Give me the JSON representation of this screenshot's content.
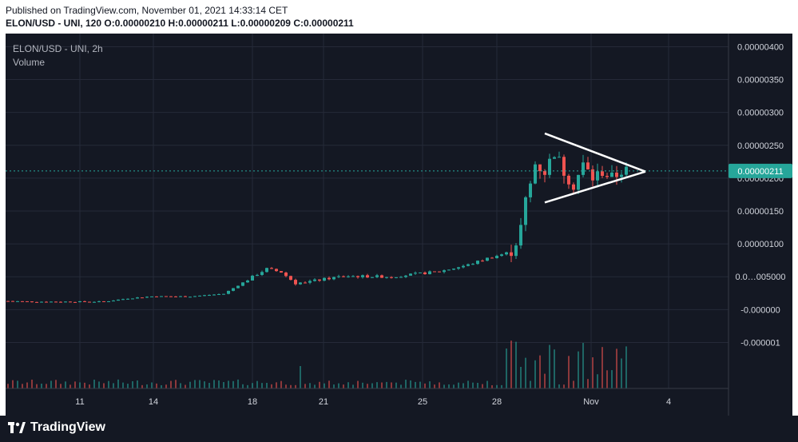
{
  "header": {
    "published": "Published on TradingView.com, November 01, 2021 14:33:14 CET",
    "symbol_interval": "ELON/USD - UNI, 120",
    "o_label": "O:",
    "o_value": "0.00000210",
    "h_label": "H:",
    "h_value": "0.00000211",
    "l_label": "L:",
    "l_value": "0.00000209",
    "c_label": "C:",
    "c_value": "0.00000211"
  },
  "overlay": {
    "title": "ELON/USD - UNI, 2h",
    "volume_label": "Volume"
  },
  "price_axis": {
    "ticks": [
      "0.00000400",
      "0.00000350",
      "0.00000300",
      "0.00000250",
      "0.00000200",
      "0.00000150",
      "0.00000100",
      "0.0…005000",
      "-0.000000",
      "-0.000001"
    ],
    "last_price_label": "0.00000211"
  },
  "time_axis": {
    "ticks": [
      "11",
      "14",
      "18",
      "21",
      "25",
      "28",
      "Nov",
      "4"
    ]
  },
  "branding": {
    "name": "TradingView"
  },
  "colors": {
    "background": "#141823",
    "grid": "#252a38",
    "up": "#26a69a",
    "down": "#ef5350",
    "last_price": "#26a69a",
    "axis_text": "#d1d4dc",
    "pattern": "#ffffff"
  },
  "chart_data": {
    "type": "candlestick",
    "title": "ELON/USD - UNI, 2h",
    "price_ylim": [
      -1.2e-06,
      4.2e-06
    ],
    "last_price": 2.11e-06,
    "x_ticks": [
      "11",
      "14",
      "18",
      "21",
      "25",
      "28",
      "Nov",
      "4"
    ],
    "close_path": [
      [
        0,
        1.3e-07
      ],
      [
        5,
        1.2e-07
      ],
      [
        12,
        1.2e-07
      ],
      [
        20,
        1.2e-07
      ],
      [
        25,
        1.7e-07
      ],
      [
        30,
        2e-07
      ],
      [
        38,
        2e-07
      ],
      [
        45,
        2.4e-07
      ],
      [
        52,
        5.4e-07
      ],
      [
        54,
        6.2e-07
      ],
      [
        57,
        5.7e-07
      ],
      [
        60,
        4e-07
      ],
      [
        64,
        4.4e-07
      ],
      [
        70,
        5.1e-07
      ],
      [
        80,
        5e-07
      ],
      [
        90,
        5.8e-07
      ],
      [
        96,
        6.8e-07
      ],
      [
        100,
        7.8e-07
      ],
      [
        104,
        8.6e-07
      ],
      [
        105,
        9e-07
      ],
      [
        106,
        1.03e-06
      ],
      [
        107,
        1.25e-06
      ],
      [
        108,
        1.65e-06
      ],
      [
        109,
        1.9e-06
      ],
      [
        110,
        2.22e-06
      ],
      [
        112,
        2.1e-06
      ],
      [
        114,
        2.4e-06
      ],
      [
        116,
        2.1e-06
      ],
      [
        118,
        1.9e-06
      ],
      [
        120,
        2.2e-06
      ],
      [
        122,
        2e-06
      ],
      [
        124,
        2.1e-06
      ],
      [
        126,
        2e-06
      ],
      [
        128,
        2.11e-06
      ]
    ],
    "pattern": {
      "type": "symmetrical triangle",
      "start": [
        112,
        2.68e-06,
        1.63e-06
      ],
      "apex": [
        133,
        2.1e-06
      ]
    }
  }
}
